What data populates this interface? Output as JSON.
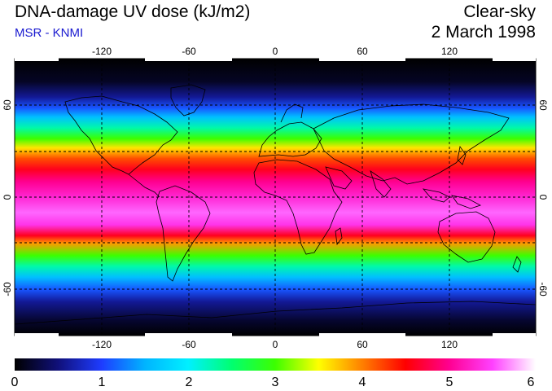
{
  "header": {
    "title": "DNA-damage UV dose (kJ/m2)",
    "source": "MSR - KNMI",
    "condition": "Clear-sky",
    "date": "2 March 1998"
  },
  "map": {
    "lon_ticks_top": [
      "-120",
      "-60",
      "0",
      "60",
      "120"
    ],
    "lon_ticks_bottom": [
      "-120",
      "-60",
      "0",
      "60",
      "120"
    ],
    "lat_ticks_left": [
      "60",
      "0",
      "-60"
    ],
    "lat_ticks_right": [
      "60",
      "0",
      "-60"
    ],
    "dose_profile": [
      {
        "lat": 90,
        "value": 0.0
      },
      {
        "lat": 75,
        "value": 0.15
      },
      {
        "lat": 65,
        "value": 0.6
      },
      {
        "lat": 58,
        "value": 1.1
      },
      {
        "lat": 52,
        "value": 1.6
      },
      {
        "lat": 45,
        "value": 2.3
      },
      {
        "lat": 38,
        "value": 3.0
      },
      {
        "lat": 32,
        "value": 3.6
      },
      {
        "lat": 25,
        "value": 4.2
      },
      {
        "lat": 18,
        "value": 4.6
      },
      {
        "lat": 10,
        "value": 5.0
      },
      {
        "lat": 0,
        "value": 5.3
      },
      {
        "lat": -10,
        "value": 5.6
      },
      {
        "lat": -18,
        "value": 5.4
      },
      {
        "lat": -25,
        "value": 4.6
      },
      {
        "lat": -30,
        "value": 3.9
      },
      {
        "lat": -38,
        "value": 3.0
      },
      {
        "lat": -45,
        "value": 2.3
      },
      {
        "lat": -52,
        "value": 1.6
      },
      {
        "lat": -60,
        "value": 1.1
      },
      {
        "lat": -68,
        "value": 0.6
      },
      {
        "lat": -80,
        "value": 0.2
      },
      {
        "lat": -90,
        "value": 0.0
      }
    ]
  },
  "colorbar": {
    "min": 0,
    "max": 6,
    "tick_labels": [
      "0",
      "1",
      "2",
      "3",
      "4",
      "5",
      "6"
    ],
    "stops": [
      {
        "value": 0.0,
        "color": "#000000"
      },
      {
        "value": 0.5,
        "color": "#10107a"
      },
      {
        "value": 1.0,
        "color": "#1e3cff"
      },
      {
        "value": 1.5,
        "color": "#00b4ff"
      },
      {
        "value": 2.0,
        "color": "#00f0ff"
      },
      {
        "value": 2.5,
        "color": "#00ff70"
      },
      {
        "value": 3.0,
        "color": "#3cff00"
      },
      {
        "value": 3.5,
        "color": "#ffff00"
      },
      {
        "value": 4.0,
        "color": "#ff8000"
      },
      {
        "value": 4.5,
        "color": "#ff0000"
      },
      {
        "value": 5.0,
        "color": "#ff0090"
      },
      {
        "value": 5.5,
        "color": "#ff40ff"
      },
      {
        "value": 6.0,
        "color": "#ffffff"
      }
    ]
  }
}
